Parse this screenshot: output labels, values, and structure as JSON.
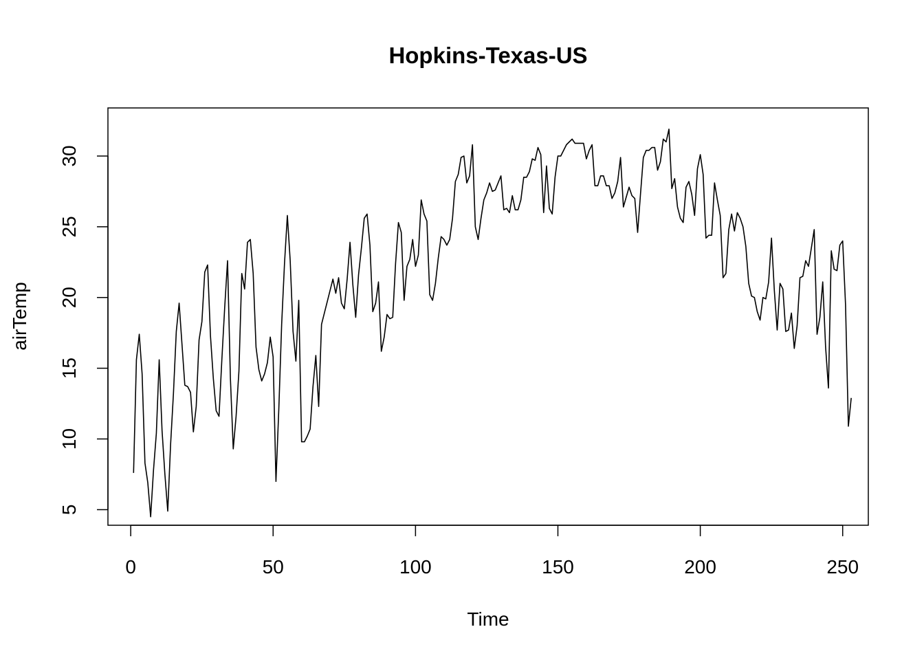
{
  "chart_data": {
    "type": "line",
    "title": "Hopkins-Texas-US",
    "xlabel": "Time",
    "ylabel": "airTemp",
    "xlim": [
      -8,
      259
    ],
    "ylim": [
      3.9,
      33.4
    ],
    "x_ticks": [
      0,
      50,
      100,
      150,
      200,
      250
    ],
    "y_ticks": [
      5,
      10,
      15,
      20,
      25,
      30
    ],
    "grid": false,
    "line_color": "#000000",
    "series": [
      {
        "x_start": 1,
        "values": [
          7.6,
          15.6,
          17.4,
          14.6,
          8.3,
          6.9,
          4.5,
          7.8,
          10.4,
          15.6,
          10.6,
          7.5,
          4.9,
          9.6,
          13.2,
          17.6,
          19.6,
          16.7,
          13.8,
          13.7,
          13.3,
          10.5,
          12.3,
          17.0,
          18.3,
          21.8,
          22.3,
          17.3,
          14.3,
          12.0,
          11.6,
          15.6,
          19.3,
          22.6,
          14.3,
          9.3,
          11.6,
          14.8,
          21.7,
          20.6,
          23.9,
          24.1,
          21.7,
          16.5,
          14.9,
          14.1,
          14.6,
          15.4,
          17.2,
          15.8,
          7.0,
          12.1,
          18.1,
          22.4,
          25.8,
          22.6,
          17.6,
          15.5,
          19.8,
          9.8,
          9.8,
          10.2,
          10.7,
          13.7,
          15.9,
          12.3,
          18.1,
          18.9,
          19.7,
          20.5,
          21.3,
          20.3,
          21.4,
          19.6,
          19.2,
          21.3,
          23.9,
          20.9,
          18.6,
          21.6,
          23.5,
          25.6,
          25.9,
          23.7,
          19.0,
          19.6,
          21.1,
          16.2,
          17.2,
          18.8,
          18.5,
          18.6,
          22.4,
          25.3,
          24.6,
          19.8,
          22.2,
          22.7,
          24.1,
          22.2,
          23.0,
          26.9,
          25.9,
          25.4,
          20.2,
          19.8,
          21.0,
          22.8,
          24.3,
          24.1,
          23.7,
          24.1,
          25.6,
          28.2,
          28.7,
          29.9,
          30.0,
          28.1,
          28.6,
          30.8,
          25.0,
          24.1,
          25.6,
          26.9,
          27.4,
          28.1,
          27.5,
          27.6,
          28.1,
          28.6,
          26.2,
          26.3,
          26.0,
          27.2,
          26.2,
          26.2,
          26.9,
          28.5,
          28.5,
          28.9,
          29.8,
          29.7,
          30.6,
          30.1,
          26.0,
          29.3,
          26.3,
          25.9,
          28.5,
          30.0,
          30.0,
          30.4,
          30.8,
          31.0,
          31.2,
          30.9,
          30.9,
          30.9,
          30.9,
          29.8,
          30.4,
          30.8,
          27.9,
          27.9,
          28.6,
          28.6,
          27.9,
          27.9,
          27.0,
          27.4,
          28.2,
          29.9,
          26.4,
          27.1,
          27.8,
          27.2,
          27.0,
          24.6,
          27.3,
          29.9,
          30.4,
          30.4,
          30.6,
          30.6,
          29.0,
          29.6,
          31.2,
          31.0,
          31.9,
          27.7,
          28.4,
          26.4,
          25.6,
          25.3,
          27.8,
          28.2,
          27.3,
          25.8,
          29.1,
          30.1,
          28.7,
          24.2,
          24.4,
          24.4,
          28.1,
          26.9,
          25.8,
          21.4,
          21.7,
          24.8,
          25.9,
          24.7,
          26.0,
          25.6,
          25.0,
          23.6,
          21.0,
          20.1,
          20.0,
          19.0,
          18.4,
          20.0,
          19.9,
          21.1,
          24.2,
          20.5,
          17.7,
          21.0,
          20.6,
          17.6,
          17.7,
          18.9,
          16.4,
          18.0,
          21.4,
          21.5,
          22.6,
          22.2,
          23.5,
          24.8,
          17.4,
          18.6,
          21.1,
          16.5,
          13.6,
          23.3,
          22.0,
          21.9,
          23.7,
          24.0,
          19.5,
          10.9,
          12.9
        ]
      }
    ]
  }
}
